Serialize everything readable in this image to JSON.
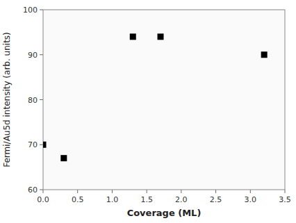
{
  "chart_data": {
    "type": "scatter",
    "x": [
      0.0,
      0.3,
      1.3,
      1.7,
      3.2
    ],
    "y": [
      70.0,
      67.0,
      94.0,
      94.0,
      90.0
    ],
    "marker": "square",
    "color": "#000000",
    "xlabel": "Coverage (ML)",
    "ylabel": "Fermi/Au5d intensity (arb. units)",
    "xlim": [
      0.0,
      3.5
    ],
    "ylim": [
      60,
      100
    ],
    "xticks": [
      {
        "value": 0.0,
        "label": "0.0"
      },
      0.5,
      {
        "value": 1.0,
        "label": "1.0"
      },
      1.5,
      {
        "value": 2.0,
        "label": "2.0"
      },
      2.5,
      {
        "value": 3.0,
        "label": "3.0"
      },
      3.5
    ],
    "yticks": [
      60,
      70,
      80,
      90,
      100
    ],
    "grid": false
  }
}
